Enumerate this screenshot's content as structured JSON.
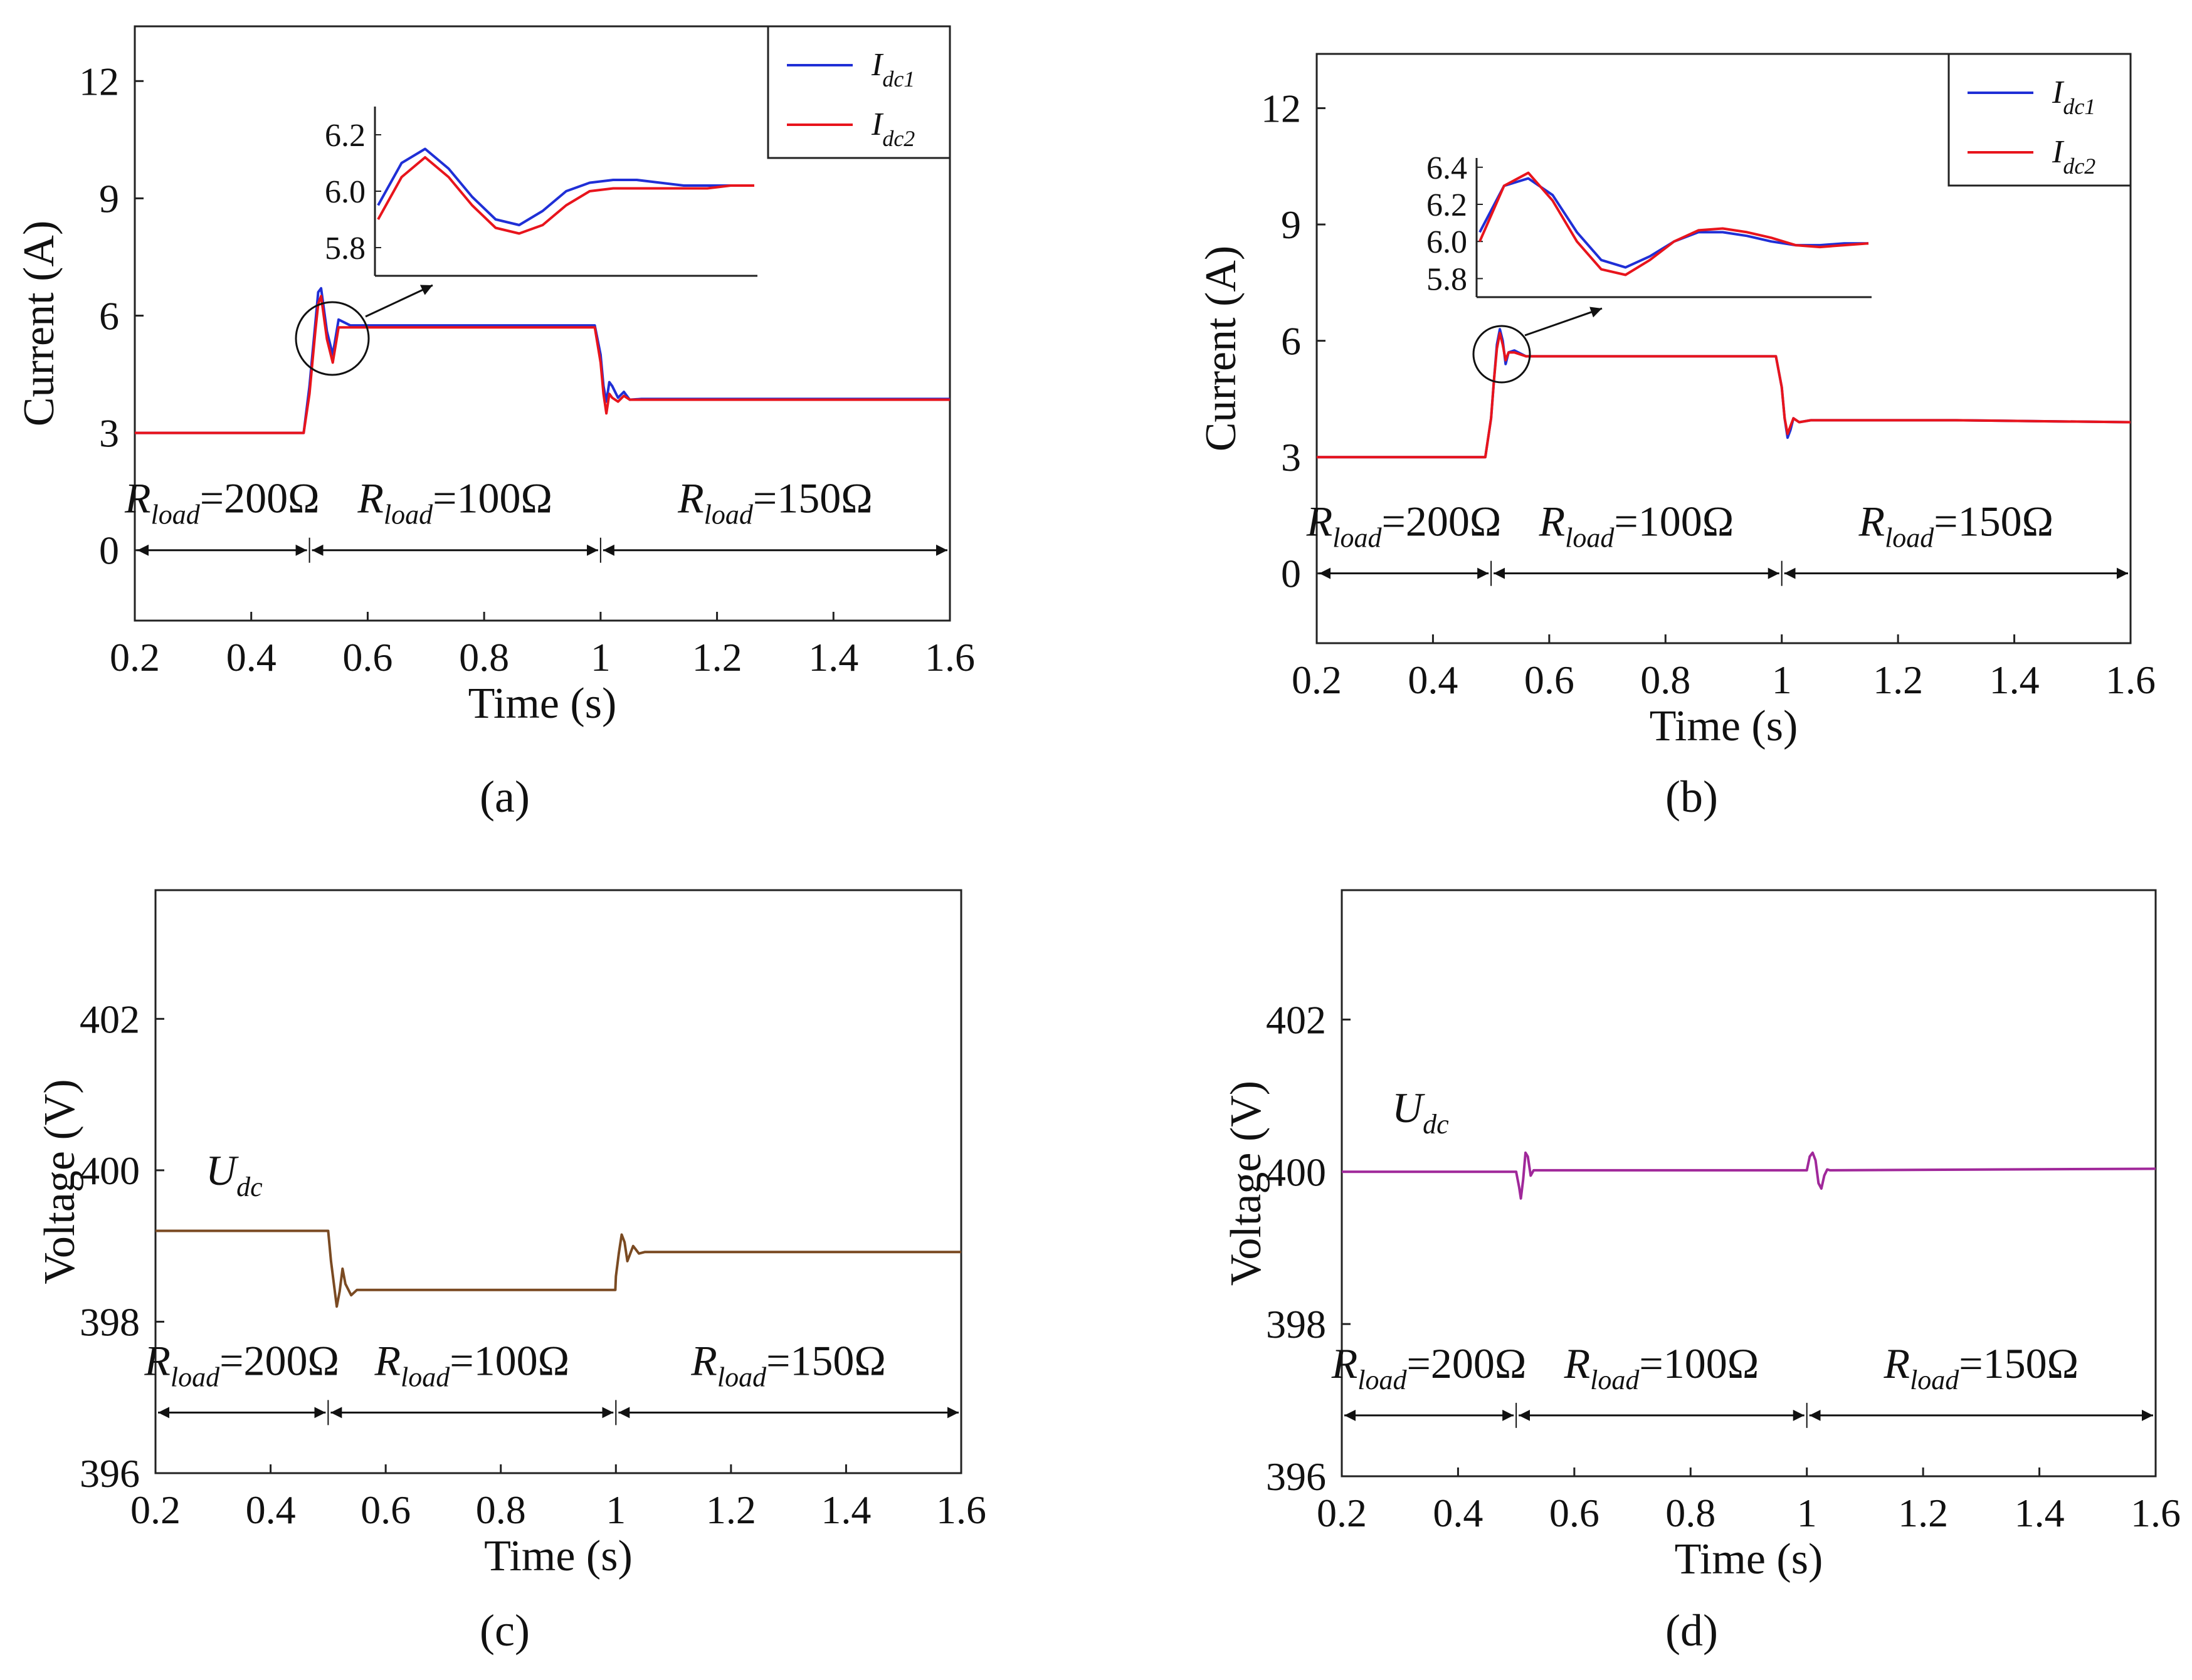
{
  "figure": {
    "captions": [
      "(a)",
      "(b)",
      "(c)",
      "(d)"
    ]
  },
  "chart_data": [
    {
      "id": "a",
      "type": "line",
      "xlabel": "Time (s)",
      "ylabel": "Current (A)",
      "xlim": [
        0.2,
        1.6
      ],
      "ylim": [
        -1.8,
        13.4
      ],
      "xticks": [
        "0.2",
        "0.4",
        "0.6",
        "0.8",
        "1",
        "1.2",
        "1.4",
        "1.6"
      ],
      "yticks": [
        "0",
        "3",
        "6",
        "9",
        "12"
      ],
      "legend": {
        "position": "top-right",
        "entries": [
          {
            "base": "I",
            "sub": "dc1",
            "color": "#1f2fd6"
          },
          {
            "base": "I",
            "sub": "dc2",
            "color": "#e8141c"
          }
        ]
      },
      "series": [
        {
          "name": "Idc1",
          "color": "#1f2fd6",
          "x": [
            0.2,
            0.49,
            0.5,
            0.505,
            0.51,
            0.515,
            0.52,
            0.53,
            0.54,
            0.55,
            0.57,
            0.6,
            0.99,
            1.0,
            1.005,
            1.01,
            1.015,
            1.02,
            1.03,
            1.04,
            1.05,
            1.07,
            1.6
          ],
          "y": [
            3.0,
            3.0,
            4.2,
            5.0,
            5.8,
            6.6,
            6.7,
            5.6,
            5.0,
            5.9,
            5.75,
            5.75,
            5.75,
            5.0,
            4.2,
            3.8,
            4.3,
            4.2,
            3.9,
            4.05,
            3.85,
            3.87,
            3.87
          ]
        },
        {
          "name": "Idc2",
          "color": "#e8141c",
          "x": [
            0.2,
            0.49,
            0.5,
            0.505,
            0.51,
            0.515,
            0.52,
            0.53,
            0.54,
            0.55,
            0.57,
            0.6,
            0.99,
            1.0,
            1.005,
            1.01,
            1.015,
            1.02,
            1.03,
            1.04,
            1.05,
            1.07,
            1.6
          ],
          "y": [
            3.0,
            3.0,
            4.0,
            4.8,
            5.6,
            6.3,
            6.5,
            5.4,
            4.8,
            5.7,
            5.7,
            5.7,
            5.7,
            4.8,
            4.0,
            3.5,
            4.0,
            3.9,
            3.8,
            3.95,
            3.85,
            3.85,
            3.85
          ]
        }
      ],
      "annotations": [
        {
          "base": "R",
          "sub": "load",
          "text": "=200Ω",
          "x": 0.35
        },
        {
          "base": "R",
          "sub": "load",
          "text": "=100Ω",
          "x": 0.75
        },
        {
          "base": "R",
          "sub": "load",
          "text": "=150Ω",
          "x": 1.3
        }
      ],
      "arrow_y": 0,
      "dividers": [
        0.5,
        1.0
      ],
      "inset": {
        "yticks": [
          "6.2",
          "6.0",
          "5.8"
        ],
        "ylim": [
          5.7,
          6.3
        ],
        "series": [
          {
            "name": "Idc1",
            "color": "#1f2fd6",
            "y": [
              5.95,
              6.1,
              6.15,
              6.08,
              5.98,
              5.9,
              5.88,
              5.93,
              6.0,
              6.03,
              6.04,
              6.04,
              6.03,
              6.02,
              6.02,
              6.02,
              6.02
            ]
          },
          {
            "name": "Idc2",
            "color": "#e8141c",
            "y": [
              5.9,
              6.05,
              6.12,
              6.05,
              5.95,
              5.87,
              5.85,
              5.88,
              5.95,
              6.0,
              6.01,
              6.01,
              6.01,
              6.01,
              6.01,
              6.02,
              6.02
            ]
          }
        ]
      }
    },
    {
      "id": "b",
      "type": "line",
      "xlabel": "Time (s)",
      "ylabel": "Current (A)",
      "xlim": [
        0.2,
        1.6
      ],
      "ylim": [
        -1.8,
        13.4
      ],
      "xticks": [
        "0.2",
        "0.4",
        "0.6",
        "0.8",
        "1",
        "1.2",
        "1.4",
        "1.6"
      ],
      "yticks": [
        "0",
        "3",
        "6",
        "9",
        "12"
      ],
      "legend": {
        "position": "top-right",
        "entries": [
          {
            "base": "I",
            "sub": "dc1",
            "color": "#1f2fd6"
          },
          {
            "base": "I",
            "sub": "dc2",
            "color": "#e8141c"
          }
        ]
      },
      "series": [
        {
          "name": "Idc1",
          "color": "#1f2fd6",
          "x": [
            0.2,
            0.49,
            0.5,
            0.505,
            0.51,
            0.515,
            0.52,
            0.525,
            0.53,
            0.54,
            0.56,
            0.6,
            0.99,
            1.0,
            1.005,
            1.01,
            1.015,
            1.02,
            1.03,
            1.05,
            1.1,
            1.3,
            1.6
          ],
          "y": [
            3.0,
            3.0,
            4.0,
            5.0,
            5.9,
            6.3,
            6.0,
            5.4,
            5.7,
            5.75,
            5.6,
            5.6,
            5.6,
            4.8,
            4.0,
            3.5,
            3.7,
            4.0,
            3.9,
            3.95,
            3.95,
            3.95,
            3.9
          ]
        },
        {
          "name": "Idc2",
          "color": "#e8141c",
          "x": [
            0.2,
            0.49,
            0.5,
            0.505,
            0.51,
            0.515,
            0.52,
            0.525,
            0.53,
            0.54,
            0.56,
            0.6,
            0.99,
            1.0,
            1.005,
            1.01,
            1.015,
            1.02,
            1.03,
            1.05,
            1.1,
            1.3,
            1.6
          ],
          "y": [
            3.0,
            3.0,
            4.0,
            5.0,
            5.8,
            6.2,
            5.9,
            5.5,
            5.7,
            5.7,
            5.6,
            5.6,
            5.6,
            4.8,
            4.0,
            3.6,
            3.8,
            4.0,
            3.9,
            3.95,
            3.95,
            3.95,
            3.9
          ]
        }
      ],
      "annotations": [
        {
          "base": "R",
          "sub": "load",
          "text": "=200Ω",
          "x": 0.35
        },
        {
          "base": "R",
          "sub": "load",
          "text": "=100Ω",
          "x": 0.75
        },
        {
          "base": "R",
          "sub": "load",
          "text": "=150Ω",
          "x": 1.3
        }
      ],
      "arrow_y": 0,
      "dividers": [
        0.5,
        1.0
      ],
      "inset": {
        "yticks": [
          "6.4",
          "6.2",
          "6.0",
          "5.8"
        ],
        "ylim": [
          5.7,
          6.45
        ],
        "series": [
          {
            "name": "Idc1",
            "color": "#1f2fd6",
            "y": [
              6.05,
              6.3,
              6.34,
              6.25,
              6.05,
              5.9,
              5.86,
              5.92,
              6.0,
              6.05,
              6.05,
              6.03,
              6.0,
              5.98,
              5.98,
              5.99,
              5.99
            ]
          },
          {
            "name": "Idc2",
            "color": "#e8141c",
            "y": [
              6.0,
              6.3,
              6.37,
              6.22,
              6.0,
              5.85,
              5.82,
              5.9,
              6.0,
              6.06,
              6.07,
              6.05,
              6.02,
              5.98,
              5.97,
              5.98,
              5.99
            ]
          }
        ]
      }
    },
    {
      "id": "c",
      "type": "line",
      "xlabel": "Time (s)",
      "ylabel": "Voltage (V)",
      "xlim": [
        0.2,
        1.6
      ],
      "ylim": [
        396,
        403.7
      ],
      "xticks": [
        "0.2",
        "0.4",
        "0.6",
        "0.8",
        "1",
        "1.2",
        "1.4",
        "1.6"
      ],
      "yticks": [
        "396",
        "398",
        "400",
        "402"
      ],
      "label": {
        "base": "U",
        "sub": "dc"
      },
      "series": [
        {
          "name": "Udc",
          "color": "#7a4a22",
          "x": [
            0.2,
            0.5,
            0.505,
            0.51,
            0.515,
            0.52,
            0.525,
            0.53,
            0.54,
            0.55,
            0.6,
            0.999,
            1.0,
            1.005,
            1.01,
            1.015,
            1.02,
            1.025,
            1.03,
            1.04,
            1.05,
            1.6
          ],
          "y": [
            399.2,
            399.2,
            398.8,
            398.5,
            398.2,
            398.4,
            398.7,
            398.5,
            398.35,
            398.42,
            398.42,
            398.42,
            398.6,
            398.9,
            399.15,
            399.05,
            398.8,
            398.9,
            399.0,
            398.9,
            398.92,
            398.92
          ]
        }
      ],
      "annotations": [
        {
          "base": "R",
          "sub": "load",
          "text": "=200Ω",
          "x": 0.35
        },
        {
          "base": "R",
          "sub": "load",
          "text": "=100Ω",
          "x": 0.75
        },
        {
          "base": "R",
          "sub": "load",
          "text": "=150Ω",
          "x": 1.3
        }
      ],
      "arrow_y": 396.8,
      "dividers": [
        0.5,
        1.0
      ]
    },
    {
      "id": "d",
      "type": "line",
      "xlabel": "Time (s)",
      "ylabel": "Voltage (V)",
      "xlim": [
        0.2,
        1.6
      ],
      "ylim": [
        396,
        403.7
      ],
      "xticks": [
        "0.2",
        "0.4",
        "0.6",
        "0.8",
        "1",
        "1.2",
        "1.4",
        "1.6"
      ],
      "yticks": [
        "396",
        "398",
        "400",
        "402"
      ],
      "label": {
        "base": "U",
        "sub": "dc"
      },
      "series": [
        {
          "name": "Udc",
          "color": "#a0289a",
          "x": [
            0.2,
            0.5,
            0.505,
            0.508,
            0.512,
            0.516,
            0.52,
            0.525,
            0.53,
            0.54,
            1.0,
            1.005,
            1.01,
            1.015,
            1.02,
            1.025,
            1.03,
            1.035,
            1.04,
            1.6
          ],
          "y": [
            400.0,
            400.0,
            399.8,
            399.65,
            399.9,
            400.25,
            400.2,
            399.95,
            400.02,
            400.02,
            400.02,
            400.2,
            400.25,
            400.15,
            399.85,
            399.78,
            399.95,
            400.03,
            400.02,
            400.04
          ]
        }
      ],
      "annotations": [
        {
          "base": "R",
          "sub": "load",
          "text": "=200Ω",
          "x": 0.35
        },
        {
          "base": "R",
          "sub": "load",
          "text": "=100Ω",
          "x": 0.75
        },
        {
          "base": "R",
          "sub": "load",
          "text": "=150Ω",
          "x": 1.3
        }
      ],
      "arrow_y": 396.8,
      "dividers": [
        0.5,
        1.0
      ]
    }
  ]
}
